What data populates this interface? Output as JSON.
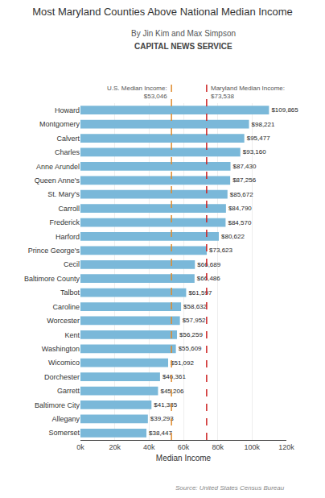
{
  "chart_data": {
    "type": "bar",
    "orientation": "horizontal",
    "title": "Most Maryland Counties Above National Median Income",
    "subtitle": [
      "By Jin Kim and Max Simpson",
      "CAPITAL NEWS SERVICE"
    ],
    "source": "Source: United States Census Bureau",
    "xlabel": "Median Income",
    "categories": [
      "Howard",
      "Montgomery",
      "Calvert",
      "Charles",
      "Anne Arundel",
      "Queen Anne's",
      "St. Mary's",
      "Carroll",
      "Frederick",
      "Harford",
      "Prince George's",
      "Cecil",
      "Baltimore County",
      "Talbot",
      "Caroline",
      "Worcester",
      "Kent",
      "Washington",
      "Wicomico",
      "Dorchester",
      "Garrett",
      "Baltimore City",
      "Allegany",
      "Somerset"
    ],
    "values": [
      109865,
      98221,
      95477,
      93160,
      87430,
      87256,
      85672,
      84790,
      84570,
      80622,
      73623,
      66689,
      66486,
      61597,
      58632,
      57952,
      56259,
      55609,
      51092,
      46361,
      45206,
      41385,
      39293,
      38447
    ],
    "value_labels": [
      "$109,865",
      "$98,221",
      "$95,477",
      "$93,160",
      "$87,430",
      "$87,256",
      "$85,672",
      "$84,790",
      "$84,570",
      "$80,622",
      "$73,623",
      "$66,689",
      "$66,486",
      "$61,597",
      "$58,632",
      "$57,952",
      "$56,259",
      "$55,609",
      "$51,092",
      "$46,361",
      "$45,206",
      "$41,385",
      "$39,293",
      "$38,447"
    ],
    "data_labels": true,
    "color": "#7ab8d9",
    "reference_lines": [
      {
        "value": 53046,
        "label": [
          "U.S. Median Income:",
          "$53,046"
        ],
        "color": "#e08c2e",
        "line_style": "dashed"
      },
      {
        "value": 73538,
        "label": [
          "Maryland Median Income:",
          "$73,538"
        ],
        "color": "#cc2222",
        "line_style": "dashed"
      }
    ],
    "xlim": [
      0,
      120000
    ],
    "xticks": [
      {
        "value": 0,
        "label": "0k"
      },
      {
        "value": 20000,
        "label": "20k"
      },
      {
        "value": 40000,
        "label": "40k"
      },
      {
        "value": 60000,
        "label": "60k"
      },
      {
        "value": 80000,
        "label": "80k"
      },
      {
        "value": 100000,
        "label": "100k"
      },
      {
        "value": 120000,
        "label": "120k"
      }
    ],
    "grid": true
  }
}
